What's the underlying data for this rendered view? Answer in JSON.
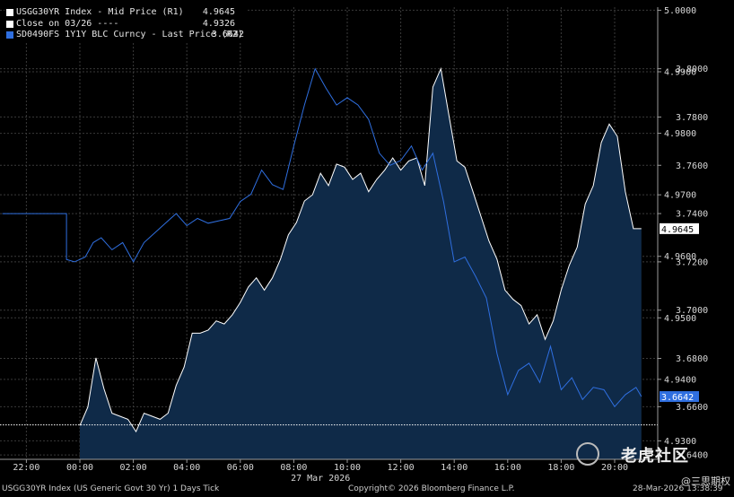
{
  "chart_data": {
    "type": "line",
    "x_tick_labels": [
      "22:00",
      "00:00",
      "02:00",
      "04:00",
      "06:00",
      "08:00",
      "10:00",
      "12:00",
      "14:00",
      "16:00",
      "18:00",
      "20:00"
    ],
    "date_label": "27 Mar 2026",
    "y_axis_r1": {
      "ticks": [
        4.93,
        4.94,
        4.95,
        4.96,
        4.97,
        4.98,
        4.99,
        5.0
      ],
      "tick_labels": [
        "4.9300",
        "4.9400",
        "4.9500",
        "4.9600",
        "4.9700",
        "4.9800",
        "4.9900",
        "5.0000"
      ],
      "range": [
        4.927,
        5.0005
      ]
    },
    "y_axis_r2": {
      "ticks": [
        3.64,
        3.66,
        3.68,
        3.7,
        3.72,
        3.74,
        3.76,
        3.78,
        3.8
      ],
      "tick_labels": [
        "3.6400",
        "3.6600",
        "3.6800",
        "3.7000",
        "3.7200",
        "3.7400",
        "3.7600",
        "3.7800",
        "3.8000"
      ],
      "range": [
        3.6382,
        3.8255
      ]
    },
    "series": [
      {
        "name": "USGG30YR Index - Mid Price (R1)",
        "last": "4.9645",
        "axis": "R1",
        "type": "area",
        "color": "#ffffff",
        "fill": "#0f2a48",
        "x": [
          0,
          0.3,
          0.6,
          0.9,
          1.2,
          1.5,
          1.8,
          2.1,
          2.4,
          2.7,
          3.0,
          3.3,
          3.6,
          3.9,
          4.2,
          4.5,
          4.8,
          5.1,
          5.4,
          5.7,
          6.0,
          6.3,
          6.6,
          6.9,
          7.2,
          7.5,
          7.8,
          8.1,
          8.4,
          8.7,
          9.0,
          9.3,
          9.6,
          9.9,
          10.2,
          10.5,
          10.8,
          11.1,
          11.4,
          11.7,
          12.0,
          12.3,
          12.6,
          12.9,
          13.2,
          13.5,
          13.8,
          14.1,
          14.4,
          14.7,
          15.0,
          15.3,
          15.6,
          15.9,
          16.2,
          16.5,
          16.8,
          17.1,
          17.4,
          17.7,
          18.0,
          18.3,
          18.6,
          18.9,
          19.2,
          19.5,
          19.8,
          20.1,
          20.4,
          20.7,
          21.0
        ],
        "y": [
          4.9325,
          4.9355,
          4.9435,
          4.9385,
          4.9345,
          4.934,
          4.9335,
          4.9315,
          4.9345,
          4.934,
          4.9335,
          4.9345,
          4.939,
          4.942,
          4.9475,
          4.9475,
          4.948,
          4.9495,
          4.949,
          4.9505,
          4.9525,
          4.955,
          4.9565,
          4.9545,
          4.9565,
          4.9595,
          4.9635,
          4.9655,
          4.969,
          4.97,
          4.9735,
          4.9715,
          4.975,
          4.9745,
          4.9725,
          4.9735,
          4.9705,
          4.9725,
          4.974,
          4.976,
          4.974,
          4.9755,
          4.976,
          4.9715,
          4.9875,
          4.9905,
          4.983,
          4.9755,
          4.9745,
          4.9705,
          4.9665,
          4.9625,
          4.9595,
          4.9545,
          4.953,
          4.952,
          4.949,
          4.9505,
          4.9465,
          4.9495,
          4.9545,
          4.9585,
          4.9615,
          4.9685,
          4.9715,
          4.9785,
          4.9815,
          4.9795,
          4.9705,
          4.9645,
          4.9645
        ],
        "hline": 4.9326
      },
      {
        "name": "Close on 03/26 ----",
        "last": "4.9326",
        "color": "#ffffff"
      },
      {
        "name": "SD0490FS 1Y1Y BLC Curncy - Last Price (R2)",
        "last": "3.6642",
        "axis": "R2",
        "type": "line",
        "color": "#2f6fe0",
        "x": [
          -2.9,
          -0.5,
          -0.5,
          -0.2,
          0.2,
          0.5,
          0.8,
          1.2,
          1.6,
          2.0,
          2.4,
          2.8,
          3.2,
          3.6,
          4.0,
          4.4,
          4.8,
          5.2,
          5.6,
          6.0,
          6.4,
          6.8,
          7.2,
          7.6,
          8.0,
          8.4,
          8.8,
          9.2,
          9.6,
          10.0,
          10.4,
          10.8,
          11.2,
          11.6,
          12.0,
          12.4,
          12.8,
          13.2,
          13.6,
          14.0,
          14.4,
          14.8,
          15.2,
          15.6,
          16.0,
          16.4,
          16.8,
          17.2,
          17.6,
          18.0,
          18.4,
          18.8,
          19.2,
          19.6,
          20.0,
          20.4,
          20.8,
          21.0
        ],
        "y": [
          3.74,
          3.74,
          3.721,
          3.72,
          3.722,
          3.728,
          3.73,
          3.725,
          3.728,
          3.72,
          3.728,
          3.732,
          3.736,
          3.74,
          3.735,
          3.738,
          3.736,
          3.737,
          3.738,
          3.745,
          3.748,
          3.758,
          3.752,
          3.75,
          3.768,
          3.785,
          3.8,
          3.792,
          3.785,
          3.788,
          3.785,
          3.779,
          3.765,
          3.76,
          3.762,
          3.768,
          3.758,
          3.765,
          3.745,
          3.72,
          3.722,
          3.714,
          3.705,
          3.682,
          3.665,
          3.675,
          3.678,
          3.67,
          3.685,
          3.667,
          3.672,
          3.663,
          3.668,
          3.667,
          3.66,
          3.665,
          3.668,
          3.6642
        ]
      }
    ],
    "last_value_tags": [
      {
        "axis": "R1",
        "value": 4.9645,
        "label": "4.9645",
        "bg": "#ffffff",
        "fg": "#000000"
      },
      {
        "axis": "R2",
        "value": 3.6642,
        "label": "3.6642",
        "bg": "#2f6fe0",
        "fg": "#ffffff"
      }
    ]
  },
  "footer": {
    "left": "USGG30YR Index (US Generic Govt 30 Yr) 1 Days Tick",
    "center": "Copyright© 2026 Bloomberg Finance L.P.",
    "right": "28-Mar-2026 13:38:39"
  },
  "watermark": {
    "main": "老虎社区",
    "sub": "@三思期权"
  }
}
